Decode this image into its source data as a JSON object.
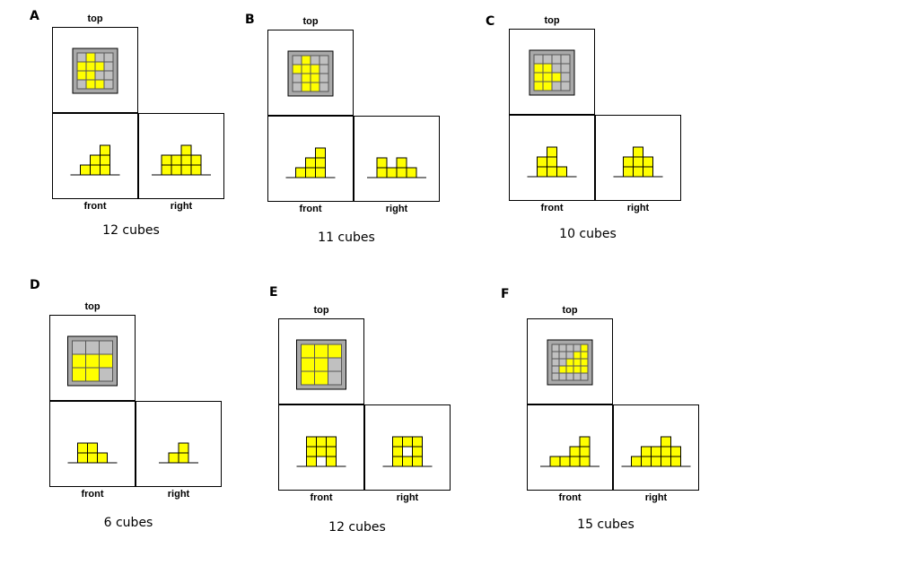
{
  "colors": {
    "cube": "#ffff00",
    "cube_border": "#555555",
    "empty": "#c0c0c0",
    "frame": "#a9a9a9",
    "line": "#000000"
  },
  "labels": {
    "top": "top",
    "front": "front",
    "right": "right"
  },
  "puzzles": [
    {
      "letter": "A",
      "cubes_label": "12 cubes",
      "top_grid": [
        [
          0,
          1,
          0,
          0
        ],
        [
          1,
          1,
          1,
          0
        ],
        [
          1,
          1,
          0,
          0
        ],
        [
          0,
          1,
          1,
          0
        ]
      ],
      "front_heights": [
        1,
        2,
        3
      ],
      "right_heights": [
        2,
        2,
        3,
        2
      ]
    },
    {
      "letter": "B",
      "cubes_label": "11 cubes",
      "top_grid": [
        [
          0,
          1,
          0,
          0
        ],
        [
          1,
          1,
          1,
          0
        ],
        [
          0,
          1,
          1,
          0
        ],
        [
          0,
          1,
          1,
          0
        ]
      ],
      "front_heights": [
        1,
        2,
        3
      ],
      "right_stacks": [
        [
          0,
          1
        ],
        [
          0
        ],
        [
          0,
          1
        ],
        [
          0
        ]
      ]
    },
    {
      "letter": "C",
      "cubes_label": "10 cubes",
      "top_grid": [
        [
          0,
          0,
          0,
          0
        ],
        [
          1,
          1,
          0,
          0
        ],
        [
          1,
          1,
          1,
          0
        ],
        [
          1,
          1,
          0,
          0
        ]
      ],
      "front_heights": [
        2,
        3,
        1
      ],
      "right_heights": [
        2,
        3,
        2
      ]
    },
    {
      "letter": "D",
      "cubes_label": "6 cubes",
      "top_grid": [
        [
          0,
          0,
          0
        ],
        [
          1,
          1,
          1
        ],
        [
          1,
          1,
          0
        ]
      ],
      "front_heights": [
        2,
        2,
        1
      ],
      "right_heights": [
        1,
        2
      ]
    },
    {
      "letter": "E",
      "cubes_label": "12 cubes",
      "top_grid": [
        [
          1,
          1,
          1
        ],
        [
          1,
          1,
          0
        ],
        [
          1,
          1,
          0
        ]
      ],
      "front_stacks": [
        [
          0,
          1,
          2
        ],
        [
          1,
          2
        ],
        [
          0,
          1,
          2
        ]
      ],
      "right_stacks": [
        [
          0,
          1,
          2
        ],
        [
          0,
          2
        ],
        [
          0,
          1,
          2
        ]
      ]
    },
    {
      "letter": "F",
      "cubes_label": "15 cubes",
      "top_grid": [
        [
          0,
          0,
          0,
          0,
          1
        ],
        [
          0,
          0,
          0,
          1,
          1
        ],
        [
          0,
          0,
          1,
          1,
          1
        ],
        [
          0,
          1,
          1,
          1,
          1
        ],
        [
          0,
          0,
          0,
          0,
          0
        ]
      ],
      "front_heights": [
        1,
        1,
        2,
        3
      ],
      "right_heights": [
        1,
        2,
        2,
        3,
        2
      ]
    }
  ]
}
